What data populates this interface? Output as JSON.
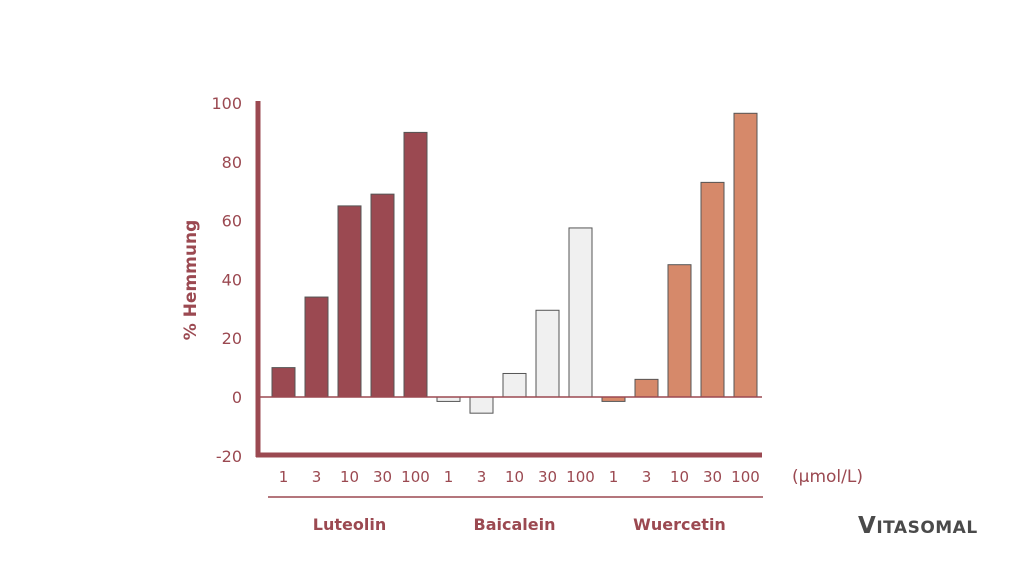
{
  "chart_data": {
    "type": "bar",
    "title": "",
    "ylabel": "% Hemmung",
    "xunit": "(µmol/L)",
    "ylim": [
      -20,
      100
    ],
    "yticks": [
      100,
      80,
      60,
      40,
      20,
      0,
      -20
    ],
    "grid": false,
    "categories": [
      "1",
      "3",
      "10",
      "30",
      "100"
    ],
    "series": [
      {
        "name": "Luteolin",
        "color": "#9b4951",
        "values": [
          10,
          34,
          65,
          69,
          90
        ]
      },
      {
        "name": "Baicalein",
        "color": "#f0f0f0",
        "values": [
          -1.5,
          -5.5,
          8,
          29.5,
          57.5
        ]
      },
      {
        "name": "Wuercetin",
        "color": "#d6896a",
        "values": [
          -1.5,
          6,
          45,
          73,
          96.5
        ]
      }
    ],
    "axis_color": "#9b4951",
    "text_color": "#9b4951"
  },
  "logo": {
    "text": "VITASOMAL",
    "color": "#4a4a4a"
  }
}
